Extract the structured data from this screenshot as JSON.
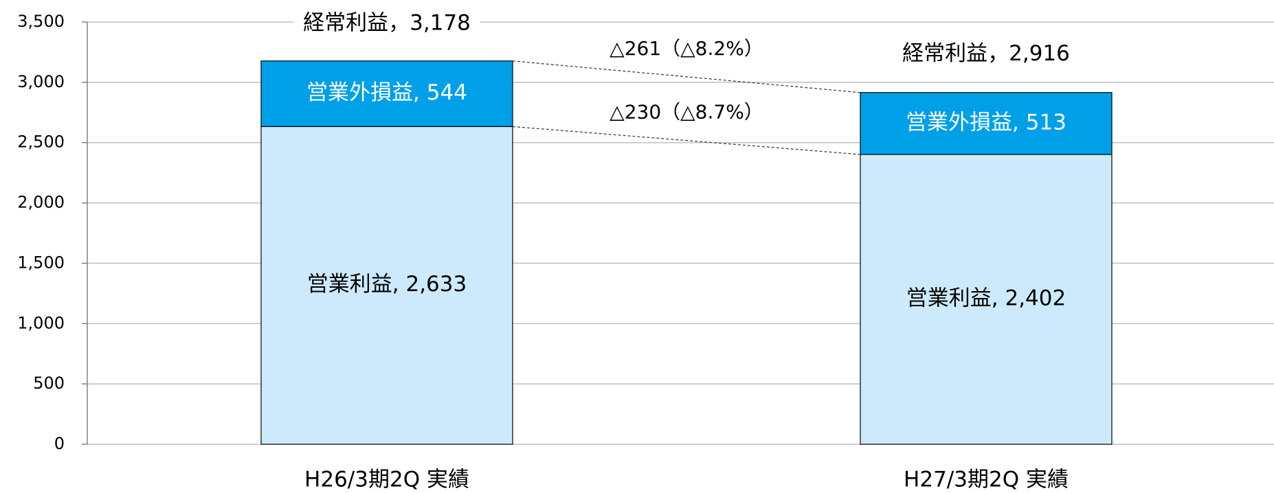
{
  "chart_data": {
    "type": "stacked_bar",
    "categories": [
      "H26/3期2Q 実績",
      "H27/3期2Q 実績"
    ],
    "series": [
      {
        "name": "営業利益",
        "color": "#cceafb",
        "values": [
          2633,
          2402
        ],
        "value_labels": [
          "営業利益, 2,633",
          "営業利益, 2,402"
        ]
      },
      {
        "name": "営業外損益",
        "color": "#00a0e9",
        "values": [
          544,
          513
        ],
        "value_labels": [
          "営業外損益, 544",
          "営業外損益, 513"
        ]
      }
    ],
    "totals": [
      3178,
      2916
    ],
    "total_labels": [
      "経常利益，3,178",
      "経常利益，2,916"
    ],
    "annotations": [
      "△261（△8.2%）",
      "△230（△8.7%）"
    ],
    "ylim": [
      0,
      3500
    ],
    "yticks": [
      0,
      500,
      {
        "value": 1000,
        "label": "1,000"
      },
      {
        "value": 1500,
        "label": "1,500"
      },
      {
        "value": 2000,
        "label": "2,000"
      },
      {
        "value": 2500,
        "label": "2,500"
      },
      {
        "value": 3000,
        "label": "3,000"
      },
      {
        "value": 3500,
        "label": "3,500"
      }
    ],
    "grid": true
  }
}
